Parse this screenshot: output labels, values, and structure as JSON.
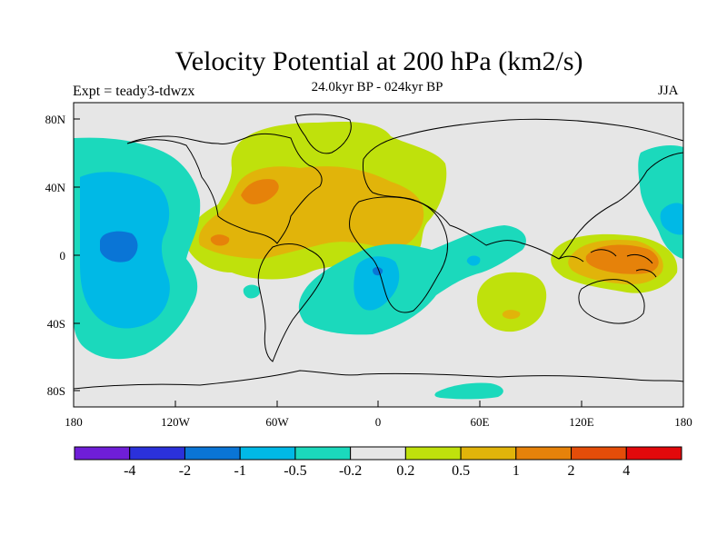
{
  "title": "Velocity Potential at 200 hPa (km2/s)",
  "subtitle": "24.0kyr BP - 024kyr BP",
  "left_label": "Expt = teady3-tdwzx",
  "right_label": "JJA",
  "colors": {
    "ocean_background": "#e6e6e6",
    "frame": "#000000",
    "coastline": "#000000"
  },
  "map": {
    "lon_ticks": [
      "180",
      "120W",
      "60W",
      "0",
      "60E",
      "120E",
      "180"
    ],
    "lat_ticks": [
      "80N",
      "40N",
      "0",
      "40S",
      "80S"
    ]
  },
  "colorbar": {
    "colors": [
      "#6f1ed8",
      "#2b31db",
      "#0a75d6",
      "#00b9e6",
      "#1bd9bc",
      "#e6e6e6",
      "#bfe10c",
      "#e1b40a",
      "#e6820a",
      "#e44d09",
      "#e2090b"
    ],
    "labels": [
      "-4",
      "-2",
      "-1",
      "-0.5",
      "-0.2",
      "0.2",
      "0.5",
      "1",
      "2",
      "4"
    ]
  }
}
